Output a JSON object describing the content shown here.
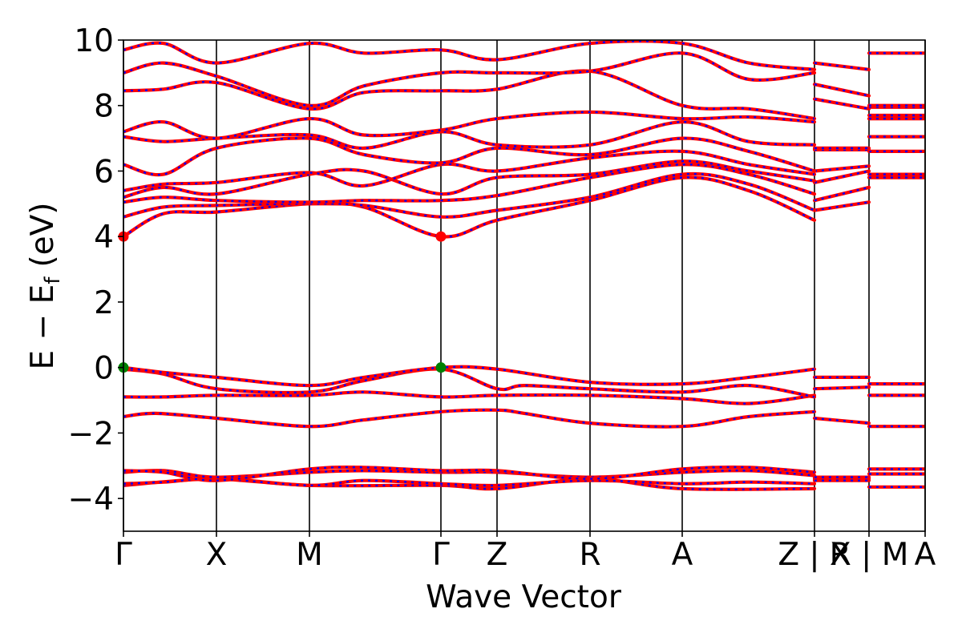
{
  "chart_data": {
    "type": "line",
    "title": "",
    "xlabel": "Wave Vector",
    "ylabel": "E − E_f (eV)",
    "ylabel_main": "E  −  E",
    "ylabel_sub": "f",
    "ylabel_unit": "(eV)",
    "ylim": [
      -5,
      10
    ],
    "yticks": [
      -4,
      -2,
      0,
      2,
      4,
      6,
      8,
      10
    ],
    "xlim": [
      0,
      1
    ],
    "grid": false,
    "legend": "none",
    "kpoints": [
      {
        "label": "Γ",
        "x": 0.0
      },
      {
        "label": "X",
        "x": 0.116
      },
      {
        "label": "M",
        "x": 0.232
      },
      {
        "label": "Γ",
        "x": 0.396
      },
      {
        "label": "Z",
        "x": 0.466
      },
      {
        "label": "R",
        "x": 0.582
      },
      {
        "label": "A",
        "x": 0.697
      },
      {
        "label": "Z | X",
        "x": 0.862
      },
      {
        "label": "R | M",
        "x": 0.93
      },
      {
        "label": "A",
        "x": 1.0
      }
    ],
    "series_style": {
      "upper": {
        "color": "#ff0000"
      },
      "lower": {
        "color": "#0000ff",
        "dashed": true
      }
    },
    "markers": [
      {
        "x": 0.0,
        "y": 4.0,
        "color": "#ff0000"
      },
      {
        "x": 0.396,
        "y": 4.0,
        "color": "#ff0000"
      },
      {
        "x": 0.0,
        "y": 0.0,
        "color": "#008000"
      },
      {
        "x": 0.396,
        "y": 0.0,
        "color": "#008000"
      }
    ],
    "bands": [
      {
        "segments": [
          {
            "x": [
              0,
              0.116,
              0.232,
              0.396,
              0.466,
              0.582,
              0.697,
              0.862
            ],
            "y": [
              -3.6,
              -3.4,
              -3.6,
              -3.6,
              -3.7,
              -3.4,
              -3.7,
              -3.7
            ]
          },
          {
            "x": [
              0.862,
              0.93
            ],
            "y": [
              -3.4,
              -3.4
            ]
          },
          {
            "x": [
              0.93,
              1.0
            ],
            "y": [
              -3.65,
              -3.65
            ]
          }
        ]
      },
      {
        "segments": [
          {
            "x": [
              0,
              0.05,
              0.116,
              0.232,
              0.3,
              0.396,
              0.466,
              0.582,
              0.697,
              0.78,
              0.862
            ],
            "y": [
              -3.55,
              -3.5,
              -3.4,
              -3.6,
              -3.45,
              -3.55,
              -3.6,
              -3.45,
              -3.55,
              -3.5,
              -3.55
            ]
          },
          {
            "x": [
              0.862,
              0.93
            ],
            "y": [
              -3.45,
              -3.45
            ]
          },
          {
            "x": [
              0.93,
              1.0
            ],
            "y": [
              -3.25,
              -3.25
            ]
          }
        ]
      },
      {
        "segments": [
          {
            "x": [
              0,
              0.05,
              0.116,
              0.232,
              0.3,
              0.396,
              0.466,
              0.582,
              0.697,
              0.78,
              0.862
            ],
            "y": [
              -3.2,
              -3.15,
              -3.35,
              -3.2,
              -3.15,
              -3.2,
              -3.2,
              -3.35,
              -3.2,
              -3.15,
              -3.3
            ]
          },
          {
            "x": [
              0.862,
              0.93
            ],
            "y": [
              -3.35,
              -3.35
            ]
          },
          {
            "x": [
              0.93,
              1.0
            ],
            "y": [
              -3.1,
              -3.1
            ]
          }
        ]
      },
      {
        "segments": [
          {
            "x": [
              0,
              0.05,
              0.116,
              0.232,
              0.3,
              0.396,
              0.466,
              0.582,
              0.697,
              0.78,
              0.862
            ],
            "y": [
              -3.15,
              -3.2,
              -3.45,
              -3.1,
              -3.05,
              -3.15,
              -3.15,
              -3.4,
              -3.1,
              -3.05,
              -3.2
            ]
          }
        ]
      },
      {
        "segments": [
          {
            "x": [
              0,
              0.04,
              0.116,
              0.232,
              0.3,
              0.396,
              0.466,
              0.5,
              0.582,
              0.697,
              0.78,
              0.862
            ],
            "y": [
              -1.5,
              -1.4,
              -1.55,
              -1.8,
              -1.6,
              -1.35,
              -1.3,
              -1.4,
              -1.7,
              -1.8,
              -1.5,
              -1.35
            ]
          },
          {
            "x": [
              0.862,
              0.93
            ],
            "y": [
              -1.55,
              -1.7
            ]
          },
          {
            "x": [
              0.93,
              1.0
            ],
            "y": [
              -1.8,
              -1.8
            ]
          }
        ]
      },
      {
        "segments": [
          {
            "x": [
              0,
              0.05,
              0.116,
              0.232,
              0.3,
              0.396,
              0.466,
              0.582,
              0.697,
              0.78,
              0.862
            ],
            "y": [
              -0.9,
              -0.9,
              -0.85,
              -0.85,
              -0.75,
              -0.9,
              -0.85,
              -0.85,
              -0.95,
              -1.1,
              -0.85
            ]
          },
          {
            "x": [
              0.862,
              0.93
            ],
            "y": [
              -0.65,
              -0.6
            ]
          },
          {
            "x": [
              0.93,
              1.0
            ],
            "y": [
              -0.85,
              -0.85
            ]
          }
        ]
      },
      {
        "segments": [
          {
            "x": [
              0,
              0.05,
              0.116,
              0.232,
              0.3,
              0.396,
              0.466,
              0.5,
              0.582,
              0.697,
              0.78,
              0.862
            ],
            "y": [
              -0.05,
              -0.2,
              -0.65,
              -0.75,
              -0.4,
              -0.05,
              -0.65,
              -0.55,
              -0.65,
              -0.75,
              -0.55,
              -0.9
            ]
          }
        ]
      },
      {
        "segments": [
          {
            "x": [
              0,
              0.05,
              0.116,
              0.232,
              0.3,
              0.396,
              0.466,
              0.582,
              0.697,
              0.78,
              0.862
            ],
            "y": [
              0.0,
              -0.15,
              -0.3,
              -0.55,
              -0.3,
              0.0,
              -0.05,
              -0.45,
              -0.5,
              -0.3,
              -0.05
            ]
          },
          {
            "x": [
              0.862,
              0.93
            ],
            "y": [
              -0.3,
              -0.3
            ]
          },
          {
            "x": [
              0.93,
              1.0
            ],
            "y": [
              -0.5,
              -0.5
            ]
          }
        ]
      },
      {
        "segments": [
          {
            "x": [
              0,
              0.05,
              0.116,
              0.232,
              0.3,
              0.396,
              0.466,
              0.582,
              0.697,
              0.78,
              0.862
            ],
            "y": [
              4.0,
              4.7,
              4.75,
              5.0,
              4.9,
              4.0,
              4.5,
              5.1,
              5.8,
              5.4,
              4.5
            ]
          },
          {
            "x": [
              0.862,
              0.93
            ],
            "y": [
              4.8,
              5.05
            ]
          },
          {
            "x": [
              0.93,
              1.0
            ],
            "y": [
              5.8,
              5.8
            ]
          }
        ]
      },
      {
        "segments": [
          {
            "x": [
              0,
              0.05,
              0.116,
              0.232,
              0.3,
              0.396,
              0.466,
              0.582,
              0.697,
              0.78,
              0.862
            ],
            "y": [
              4.6,
              4.9,
              4.95,
              5.0,
              4.95,
              4.6,
              4.8,
              5.2,
              5.9,
              5.6,
              4.8
            ]
          },
          {
            "x": [
              0.862,
              0.93
            ],
            "y": [
              5.1,
              5.5
            ]
          },
          {
            "x": [
              0.93,
              1.0
            ],
            "y": [
              5.9,
              5.9
            ]
          }
        ]
      },
      {
        "segments": [
          {
            "x": [
              0,
              0.05,
              0.116,
              0.232,
              0.3,
              0.396,
              0.466,
              0.582,
              0.697,
              0.78,
              0.862
            ],
            "y": [
              5.05,
              5.2,
              5.1,
              5.05,
              5.1,
              5.1,
              5.25,
              5.8,
              6.2,
              5.9,
              5.3
            ]
          },
          {
            "x": [
              0.862,
              0.93
            ],
            "y": [
              5.65,
              6.0
            ]
          },
          {
            "x": [
              0.93,
              1.0
            ],
            "y": [
              6.6,
              6.6
            ]
          }
        ]
      },
      {
        "segments": [
          {
            "x": [
              0,
              0.05,
              0.116,
              0.232,
              0.3,
              0.396,
              0.466,
              0.582,
              0.697,
              0.78,
              0.862
            ],
            "y": [
              5.2,
              5.5,
              5.3,
              5.9,
              6.0,
              5.3,
              5.8,
              5.9,
              6.3,
              6.0,
              5.7
            ]
          },
          {
            "x": [
              0.862,
              0.93
            ],
            "y": [
              6.0,
              6.15
            ]
          },
          {
            "x": [
              0.93,
              1.0
            ],
            "y": [
              7.05,
              7.05
            ]
          }
        ]
      },
      {
        "segments": [
          {
            "x": [
              0,
              0.05,
              0.116,
              0.232,
              0.3,
              0.396,
              0.466,
              0.582,
              0.697,
              0.78,
              0.862
            ],
            "y": [
              5.4,
              5.6,
              5.65,
              5.95,
              5.55,
              6.2,
              6.0,
              6.4,
              6.6,
              6.2,
              5.9
            ]
          },
          {
            "x": [
              0.862,
              0.93
            ],
            "y": [
              6.65,
              6.65
            ]
          },
          {
            "x": [
              0.93,
              1.0
            ],
            "y": [
              7.6,
              7.6
            ]
          }
        ]
      },
      {
        "segments": [
          {
            "x": [
              0,
              0.05,
              0.116,
              0.232,
              0.3,
              0.396,
              0.466,
              0.582,
              0.697,
              0.78,
              0.862
            ],
            "y": [
              6.2,
              5.9,
              6.7,
              7.0,
              6.5,
              6.25,
              6.7,
              6.5,
              7.0,
              6.6,
              6.0
            ]
          },
          {
            "x": [
              0.862,
              0.93
            ],
            "y": [
              6.7,
              6.7
            ]
          },
          {
            "x": [
              0.93,
              1.0
            ],
            "y": [
              7.7,
              7.7
            ]
          }
        ]
      },
      {
        "segments": [
          {
            "x": [
              0,
              0.05,
              0.116,
              0.232,
              0.3,
              0.396,
              0.466,
              0.582,
              0.697,
              0.78,
              0.862
            ],
            "y": [
              7.05,
              6.9,
              7.0,
              7.1,
              6.7,
              7.2,
              6.8,
              6.8,
              7.5,
              6.9,
              6.8
            ]
          },
          {
            "x": [
              0.862,
              0.93
            ],
            "y": [
              8.2,
              7.9
            ]
          },
          {
            "x": [
              0.93,
              1.0
            ],
            "y": [
              7.95,
              7.95
            ]
          }
        ]
      },
      {
        "segments": [
          {
            "x": [
              0,
              0.05,
              0.116,
              0.232,
              0.3,
              0.396,
              0.466,
              0.582,
              0.697,
              0.78,
              0.862
            ],
            "y": [
              7.2,
              7.5,
              7.0,
              7.6,
              7.1,
              7.25,
              7.6,
              7.8,
              7.6,
              7.65,
              7.5
            ]
          },
          {
            "x": [
              0.862,
              0.93
            ],
            "y": [
              8.65,
              8.3
            ]
          },
          {
            "x": [
              0.93,
              1.0
            ],
            "y": [
              8.0,
              8.0
            ]
          }
        ]
      },
      {
        "segments": [
          {
            "x": [
              0,
              0.05,
              0.116,
              0.232,
              0.3,
              0.396,
              0.466,
              0.582,
              0.697,
              0.78,
              0.862
            ],
            "y": [
              8.45,
              8.5,
              8.7,
              7.9,
              8.4,
              8.45,
              8.5,
              9.05,
              8.0,
              7.9,
              7.6
            ]
          },
          {
            "x": [
              0.862,
              0.93
            ],
            "y": [
              9.3,
              9.1
            ]
          },
          {
            "x": [
              0.93,
              1.0
            ],
            "y": [
              9.6,
              9.6
            ]
          }
        ]
      },
      {
        "segments": [
          {
            "x": [
              0,
              0.05,
              0.116,
              0.232,
              0.3,
              0.396,
              0.466,
              0.582,
              0.697,
              0.78,
              0.862
            ],
            "y": [
              9.0,
              9.3,
              8.9,
              8.0,
              8.6,
              9.0,
              9.0,
              9.05,
              9.6,
              8.8,
              9.0
            ]
          }
        ]
      },
      {
        "segments": [
          {
            "x": [
              0,
              0.05,
              0.116,
              0.232,
              0.3,
              0.396,
              0.466,
              0.582,
              0.697,
              0.78,
              0.862
            ],
            "y": [
              9.7,
              9.9,
              9.3,
              9.9,
              9.6,
              9.7,
              9.4,
              9.9,
              9.9,
              9.3,
              9.1
            ]
          }
        ]
      }
    ]
  }
}
